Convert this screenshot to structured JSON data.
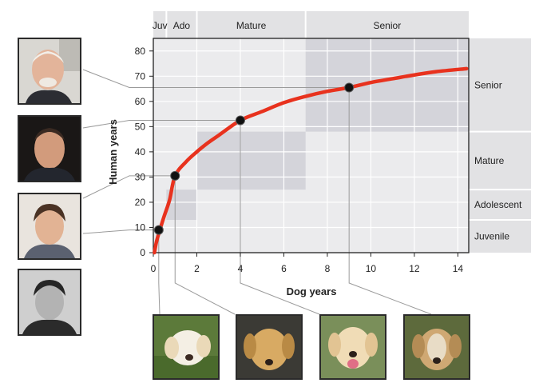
{
  "chart_data": {
    "type": "line",
    "xlabel": "Dog years",
    "ylabel": "Human years",
    "xlim": [
      0,
      14.5
    ],
    "ylim": [
      0,
      85
    ],
    "xticks": [
      0,
      2,
      4,
      6,
      8,
      10,
      12,
      14
    ],
    "yticks": [
      0,
      10,
      20,
      30,
      40,
      50,
      60,
      70,
      80
    ],
    "grid": true,
    "curve": {
      "color": "#e8321e",
      "x": [
        0.05,
        0.15,
        0.3,
        0.5,
        0.75,
        1,
        1.5,
        2,
        2.5,
        3,
        4,
        5,
        6,
        7,
        8,
        9,
        10,
        11,
        12,
        13,
        14.4
      ],
      "y": [
        0,
        4.5,
        9,
        14.5,
        21,
        30.5,
        36,
        40,
        43.5,
        46.5,
        52.5,
        56,
        59.5,
        62,
        64,
        65.5,
        67.5,
        69,
        70.5,
        71.8,
        73
      ]
    },
    "points": [
      {
        "x": 0.25,
        "y": 9
      },
      {
        "x": 1,
        "y": 30.5
      },
      {
        "x": 4,
        "y": 52.5
      },
      {
        "x": 9,
        "y": 65.5
      }
    ],
    "top_stages": [
      {
        "label": "Juv",
        "x_start": 0,
        "x_end": 0.6
      },
      {
        "label": "Ado",
        "x_start": 0.6,
        "x_end": 2
      },
      {
        "label": "Mature",
        "x_start": 2,
        "x_end": 7
      },
      {
        "label": "Senior",
        "x_start": 7,
        "x_end": 14.5
      }
    ],
    "right_stages": [
      {
        "label": "Senior",
        "y_start": 48,
        "y_end": 85
      },
      {
        "label": "Mature",
        "y_start": 25,
        "y_end": 48
      },
      {
        "label": "Adolescent",
        "y_start": 13,
        "y_end": 25
      },
      {
        "label": "Juvenile",
        "y_start": 0,
        "y_end": 13
      }
    ],
    "shaded_regions": [
      {
        "x": [
          0.6,
          2
        ],
        "y": [
          13,
          25
        ]
      },
      {
        "x": [
          2,
          7
        ],
        "y": [
          25,
          48
        ]
      },
      {
        "x": [
          7,
          14.5
        ],
        "y": [
          48,
          85
        ]
      }
    ],
    "colors": {
      "curve": "#e8321e",
      "band": "#e2e2e4",
      "region": "#d4d4da",
      "grid": "#ffffff",
      "axis": "#222222"
    }
  },
  "photos": {
    "humans": [
      "human-photo-senior",
      "human-photo-mature",
      "human-photo-adolescent",
      "human-photo-juvenile"
    ],
    "dogs": [
      "dog-photo-puppy",
      "dog-photo-adolescent",
      "dog-photo-mature",
      "dog-photo-senior"
    ]
  }
}
